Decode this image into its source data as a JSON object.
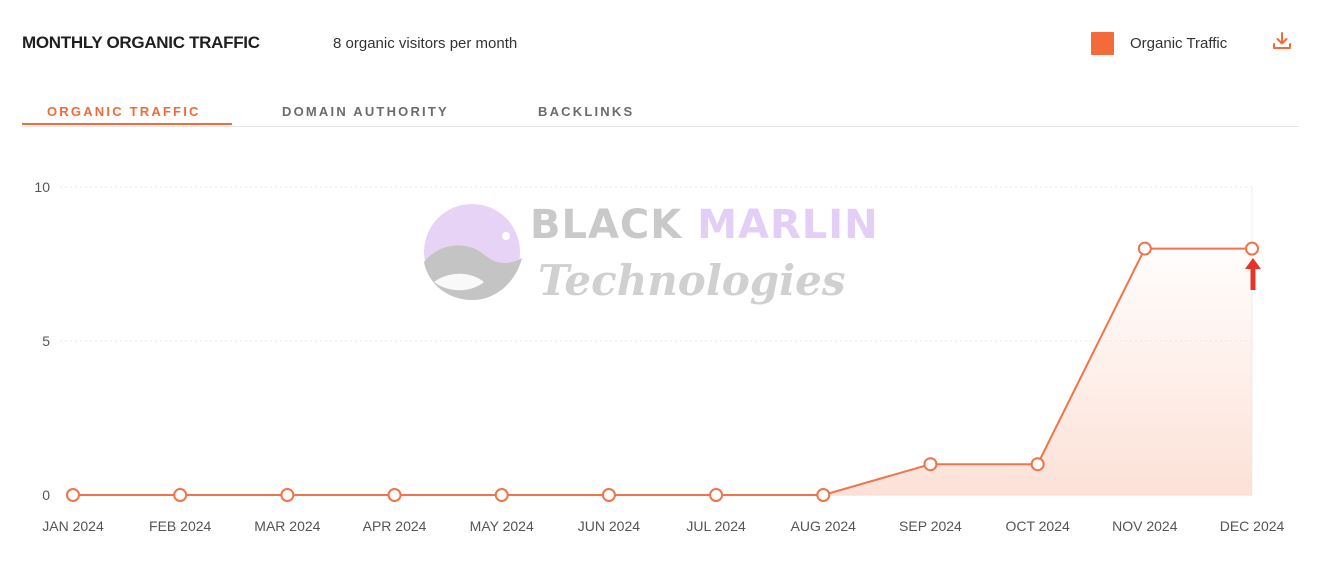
{
  "header": {
    "title": "MONTHLY ORGANIC TRAFFIC",
    "subtitle": "8 organic visitors per month",
    "legend_label": "Organic Traffic",
    "download_icon": "download-icon"
  },
  "tabs": [
    {
      "label": "ORGANIC TRAFFIC",
      "active": true
    },
    {
      "label": "DOMAIN AUTHORITY",
      "active": false
    },
    {
      "label": "BACKLINKS",
      "active": false
    }
  ],
  "watermark": {
    "word1": "BLACK",
    "word2": "MARLIN",
    "word3": "Technologies"
  },
  "colors": {
    "accent": "#f26b38",
    "line": "#f0744a",
    "fill": "#fcded3",
    "grid": "#e8e8e8",
    "arrow": "#e8332a"
  },
  "chart_data": {
    "type": "line",
    "categories": [
      "JAN 2024",
      "FEB 2024",
      "MAR 2024",
      "APR 2024",
      "MAY 2024",
      "JUN 2024",
      "JUL 2024",
      "AUG 2024",
      "SEP 2024",
      "OCT 2024",
      "NOV 2024",
      "DEC 2024"
    ],
    "series": [
      {
        "name": "Organic Traffic",
        "values": [
          0,
          0,
          0,
          0,
          0,
          0,
          0,
          0,
          1,
          1,
          8,
          8
        ]
      }
    ],
    "ylim": [
      0,
      10
    ],
    "yticks": [
      0,
      5,
      10
    ],
    "grid": true,
    "area_fill": true,
    "legend_position": "top-right"
  }
}
